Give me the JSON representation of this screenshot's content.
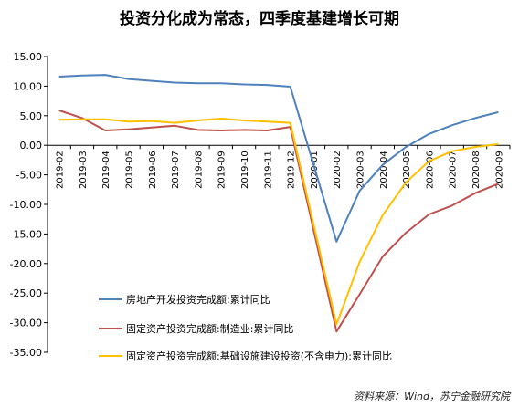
{
  "title": "投资分化成为常态，四季度基建增长可期",
  "source": "资料来源：Wind，苏宁金融研究院",
  "chart_data": {
    "type": "line",
    "title": "投资分化成为常态，四季度基建增长可期",
    "ylim": [
      -35,
      15
    ],
    "yticks": [
      "15.00",
      "10.00",
      "5.00",
      "0.00",
      "-5.00",
      "-10.00",
      "-15.00",
      "-20.00",
      "-25.00",
      "-30.00",
      "-35.00"
    ],
    "ytick_values": [
      15,
      10,
      5,
      0,
      -5,
      -10,
      -15,
      -20,
      -25,
      -30,
      -35
    ],
    "categories": [
      "2019-02",
      "2019-03",
      "2019-04",
      "2019-05",
      "2019-06",
      "2019-07",
      "2019-08",
      "2019-09",
      "2019-10",
      "2019-11",
      "2019-12",
      "2020-01",
      "2020-02",
      "2020-03",
      "2020-04",
      "2020-05",
      "2020-06",
      "2020-07",
      "2020-08",
      "2020-09"
    ],
    "grid": false,
    "legend_position": "bottom-left",
    "series": [
      {
        "name": "房地产开发投资完成额:累计同比",
        "color": "#4f81bd",
        "values": [
          11.6,
          11.8,
          11.9,
          11.2,
          10.9,
          10.6,
          10.5,
          10.5,
          10.3,
          10.2,
          9.9,
          null,
          -16.3,
          -7.7,
          -3.3,
          -0.3,
          1.9,
          3.4,
          4.6,
          5.6
        ]
      },
      {
        "name": "固定资产投资完成额:制造业:累计同比",
        "color": "#c0504d",
        "values": [
          5.9,
          4.6,
          2.5,
          2.7,
          3.0,
          3.3,
          2.6,
          2.5,
          2.6,
          2.5,
          3.1,
          null,
          -31.5,
          -25.2,
          -18.8,
          -14.8,
          -11.7,
          -10.2,
          -8.1,
          -6.5
        ]
      },
      {
        "name": "固定资产投资完成额:基础设施建设投资(不含电力):累计同比",
        "color": "#ffc000",
        "values": [
          4.3,
          4.4,
          4.4,
          4.0,
          4.1,
          3.8,
          4.2,
          4.5,
          4.2,
          4.0,
          3.8,
          null,
          -30.3,
          -19.7,
          -11.8,
          -6.3,
          -2.7,
          -1.0,
          -0.3,
          0.2
        ]
      }
    ]
  }
}
